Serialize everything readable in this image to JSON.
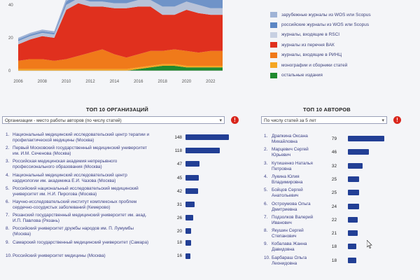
{
  "chart_data": {
    "type": "area",
    "x": [
      2006,
      2007,
      2008,
      2009,
      2010,
      2011,
      2012,
      2013,
      2014,
      2015,
      2016,
      2017,
      2018,
      2019,
      2020,
      2021,
      2022,
      2023
    ],
    "xticks": [
      "2006",
      "2008",
      "2010",
      "2012",
      "2014",
      "2016",
      "2018",
      "2020",
      "2022"
    ],
    "yticks": [
      "0",
      "20",
      "40"
    ],
    "ylim": [
      0,
      60
    ],
    "series": [
      {
        "name": "остальные издания",
        "color": "#1f8a2e",
        "values": [
          0,
          0,
          0,
          0,
          0,
          0,
          0,
          0,
          0,
          0,
          1,
          2,
          3,
          3,
          2,
          2,
          2,
          2
        ]
      },
      {
        "name": "монографии и сборники статей",
        "color": "#f5a623",
        "values": [
          1,
          1,
          1,
          1,
          1,
          1,
          1,
          1,
          1,
          1,
          1,
          1,
          1,
          1,
          1,
          1,
          1,
          1
        ]
      },
      {
        "name": "журналы, входящие в РИНЦ",
        "color": "#f07a1a",
        "values": [
          5,
          6,
          6,
          5,
          6,
          8,
          10,
          12,
          9,
          7,
          8,
          9,
          8,
          9,
          9,
          8,
          9,
          9
        ]
      },
      {
        "name": "журналы из перечня ВАК",
        "color": "#e0301e",
        "values": [
          10,
          12,
          14,
          14,
          30,
          32,
          28,
          26,
          28,
          30,
          29,
          27,
          22,
          21,
          25,
          24,
          22,
          22
        ]
      },
      {
        "name": "журналы, входящие в RSCI",
        "color": "#b8c2d8",
        "values": [
          2,
          2,
          2,
          2,
          3,
          3,
          3,
          3,
          3,
          3,
          4,
          4,
          5,
          5,
          5,
          5,
          4,
          4
        ]
      },
      {
        "name": "российские журналы из WOS или Scopus",
        "color": "#6f93c8",
        "values": [
          1,
          1,
          1,
          1,
          2,
          3,
          4,
          5,
          5,
          6,
          7,
          8,
          10,
          10,
          11,
          11,
          10,
          10
        ]
      },
      {
        "name": "зарубежные журналы из WOS или Scopus",
        "color": "#9fb3d6",
        "values": [
          1,
          1,
          1,
          1,
          2,
          3,
          3,
          4,
          4,
          5,
          5,
          6,
          7,
          7,
          7,
          7,
          6,
          6
        ]
      }
    ]
  },
  "legend": [
    {
      "label": "зарубежные журналы из WOS или Scopus",
      "color": "#9fb3d6"
    },
    {
      "label": "российские журналы из WOS или Scopus",
      "color": "#5b86c4"
    },
    {
      "label": "журналы, входящие в RSCI",
      "color": "#c7d0e2"
    },
    {
      "label": "журналы из перечня ВАК",
      "color": "#e0301e"
    },
    {
      "label": "журналы, входящие в РИНЦ",
      "color": "#f07a1a"
    },
    {
      "label": "монографии и сборники статей",
      "color": "#f5a623"
    },
    {
      "label": "остальные издания",
      "color": "#1f8a2e"
    }
  ],
  "orgs": {
    "title": "ТОП 10 ОРГАНИЗАЦИЙ",
    "select": "Организации - место работы авторов (по числу статей)",
    "max": 148,
    "items": [
      {
        "n": "1.",
        "l1": "Национальный медицинский исследовательский центр терапии и",
        "l2": "профилактической медицины (Москва)",
        "v": 148
      },
      {
        "n": "2.",
        "l1": "Первый Московский государственный медицинский университет",
        "l2": "им. И.М. Сеченова (Москва)",
        "v": 118
      },
      {
        "n": "3.",
        "l1": "Российская медицинская академия непрерывного",
        "l2": "профессионального образования (Москва)",
        "v": 47
      },
      {
        "n": "4.",
        "l1": "Национальный медицинский исследовательский центр",
        "l2": "кардиологии им. академика Е.И. Чазова (Москва)",
        "v": 45
      },
      {
        "n": "5.",
        "l1": "Российский национальный исследовательский медицинский",
        "l2": "университет им. Н.И. Пирогова (Москва)",
        "v": 42
      },
      {
        "n": "6.",
        "l1": "Научно-исследовательский институт комплексных проблем",
        "l2": "сердечно-сосудистых заболеваний (Кемерово)",
        "v": 31
      },
      {
        "n": "7.",
        "l1": "Рязанский государственный медицинский университет им. акад.",
        "l2": "И.П. Павлова (Рязань)",
        "v": 26
      },
      {
        "n": "8.",
        "l1": "Российский университет дружбы народов им. П. Лумумбы",
        "l2": "(Москва)",
        "v": 20
      },
      {
        "n": "9.",
        "l1": "Самарский государственный медицинский университет (Самара)",
        "l2": "",
        "v": 18
      },
      {
        "n": "10.",
        "l1": "Российский университет медицины (Москва)",
        "l2": "",
        "v": 16
      }
    ]
  },
  "authors": {
    "title": "ТОП 10 АВТОРОВ",
    "select": "По числу статей за 5 лет",
    "max": 79,
    "items": [
      {
        "n": "1.",
        "l1": "Драпкина Оксана",
        "l2": "Михайловна",
        "v": 79
      },
      {
        "n": "2.",
        "l1": "Марцевич Сергей",
        "l2": "Юрьевич",
        "v": 46
      },
      {
        "n": "3.",
        "l1": "Кутишенко Наталья",
        "l2": "Петровна",
        "v": 32
      },
      {
        "n": "4.",
        "l1": "Лукина Юлия",
        "l2": "Владимировна",
        "v": 25
      },
      {
        "n": "5.",
        "l1": "Бойцов Сергей",
        "l2": "Анатольевич",
        "v": 25
      },
      {
        "n": "6.",
        "l1": "Остроумова Ольга",
        "l2": "Дмитриевна",
        "v": 24
      },
      {
        "n": "7.",
        "l1": "Подзолков Валерий",
        "l2": "Иванович",
        "v": 22
      },
      {
        "n": "8.",
        "l1": "Якушин Сергей",
        "l2": "Степанович",
        "v": 21
      },
      {
        "n": "9.",
        "l1": "Кобалава Жанна",
        "l2": "Давидовна",
        "v": 18
      },
      {
        "n": "10.",
        "l1": "Барбараш Ольга",
        "l2": "Леонидовна",
        "v": 18
      }
    ]
  }
}
